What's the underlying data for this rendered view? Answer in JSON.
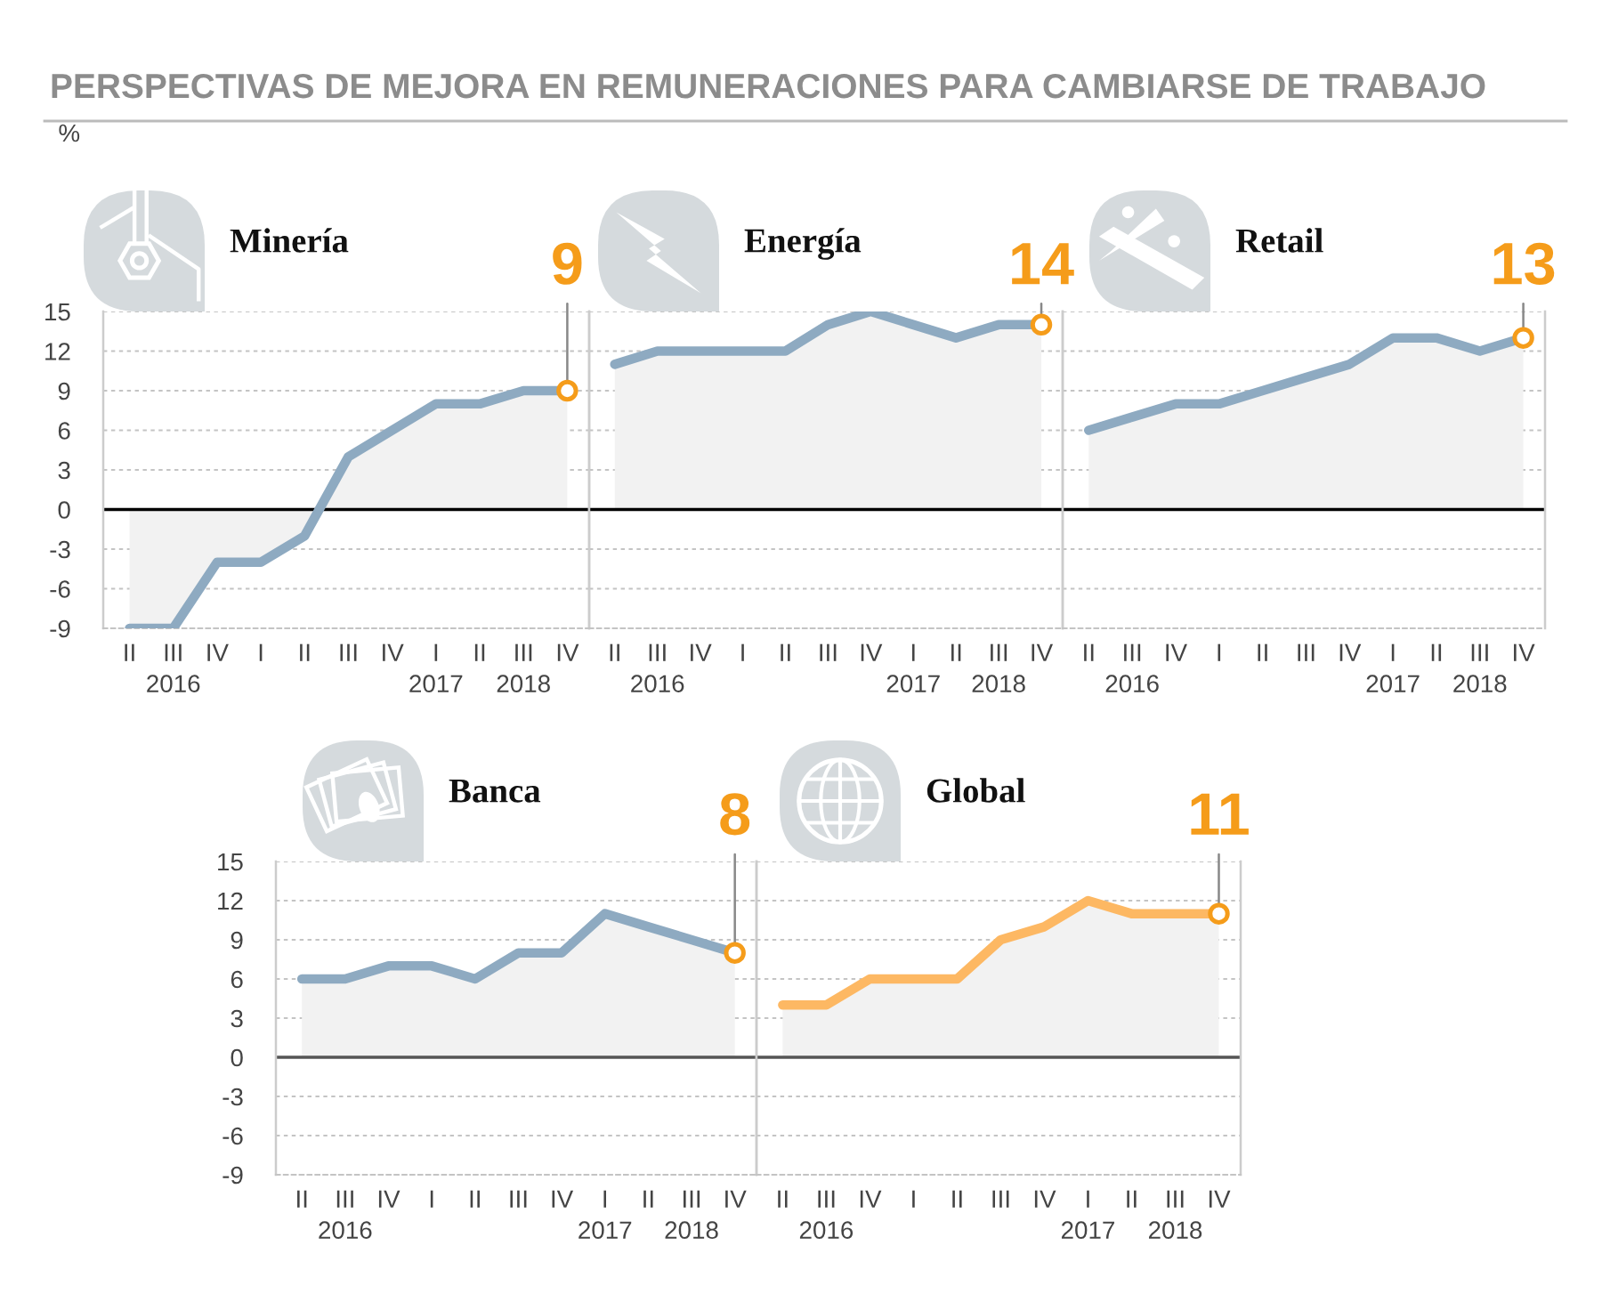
{
  "chart_data": [
    {
      "type": "area",
      "title": "PERSPECTIVAS DE MEJORA EN REMUNERACIONES PARA CAMBIARSE DE TRABAJO",
      "subtitle": "Minería",
      "ylabel": "%",
      "categories": [
        "II",
        "III\n2016",
        "IV",
        "I",
        "II",
        "III",
        "IV",
        "I\n2017",
        "II",
        "III\n2018",
        "IV"
      ],
      "series": [
        {
          "color": "#8eaac1",
          "values": [
            -9,
            -9,
            -4,
            -4,
            -2,
            4,
            6,
            8,
            8,
            9,
            9
          ],
          "value_labels": [
            null,
            null,
            null,
            null,
            null,
            null,
            null,
            null,
            null,
            null,
            "9"
          ]
        }
      ],
      "ylim": [
        -9,
        15
      ],
      "yticks": [
        -9,
        -6,
        -3,
        0,
        3,
        6,
        9,
        12,
        15
      ],
      "grid": "y",
      "ref_lines": [
        {
          "axis": "y",
          "value": 0,
          "color": "#000000"
        }
      ]
    },
    {
      "type": "area",
      "subtitle": "Energía",
      "categories": [
        "II",
        "III\n2016",
        "IV",
        "I",
        "II",
        "III",
        "IV",
        "I\n2017",
        "II",
        "III\n2018",
        "IV"
      ],
      "series": [
        {
          "color": "#8eaac1",
          "values": [
            11,
            12,
            12,
            12,
            12,
            14,
            15,
            14,
            13,
            14,
            14
          ],
          "value_labels": [
            null,
            null,
            null,
            null,
            null,
            null,
            null,
            null,
            null,
            null,
            "14"
          ]
        }
      ],
      "ylim": [
        -9,
        15
      ],
      "yticks": [
        -9,
        -6,
        -3,
        0,
        3,
        6,
        9,
        12,
        15
      ],
      "tick_labels": "x",
      "grid": "y",
      "ref_lines": [
        {
          "axis": "y",
          "value": 0,
          "color": "#000000"
        }
      ]
    },
    {
      "type": "area",
      "subtitle": "Retail",
      "categories": [
        "II",
        "III\n2016",
        "IV",
        "I",
        "II",
        "III",
        "IV",
        "I\n2017",
        "II",
        "III\n2018",
        "IV"
      ],
      "series": [
        {
          "color": "#8eaac1",
          "values": [
            6,
            7,
            8,
            8,
            9,
            10,
            11,
            13,
            13,
            12,
            13
          ],
          "value_labels": [
            null,
            null,
            null,
            null,
            null,
            null,
            null,
            null,
            null,
            null,
            "13"
          ]
        }
      ],
      "ylim": [
        -9,
        15
      ],
      "yticks": [
        -9,
        -6,
        -3,
        0,
        3,
        6,
        9,
        12,
        15
      ],
      "tick_labels": "x",
      "grid": "y",
      "ref_lines": [
        {
          "axis": "y",
          "value": 0,
          "color": "#000000"
        }
      ]
    },
    {
      "type": "area",
      "subtitle": "Banca",
      "categories": [
        "II",
        "III\n2016",
        "IV",
        "I",
        "II",
        "III",
        "IV",
        "I\n2017",
        "II",
        "III\n2018",
        "IV"
      ],
      "series": [
        {
          "color": "#8eaac1",
          "values": [
            6,
            6,
            7,
            7,
            6,
            8,
            8,
            11,
            10,
            9,
            8
          ],
          "value_labels": [
            null,
            null,
            null,
            null,
            null,
            null,
            null,
            null,
            null,
            null,
            "8"
          ]
        }
      ],
      "ylim": [
        -9,
        15
      ],
      "yticks": [
        -9,
        -6,
        -3,
        0,
        3,
        6,
        9,
        12,
        15
      ],
      "grid": "y",
      "ref_lines": [
        {
          "axis": "y",
          "value": 0,
          "color": "#555555"
        }
      ]
    },
    {
      "type": "area",
      "subtitle": "Global",
      "categories": [
        "II",
        "III\n2016",
        "IV",
        "I",
        "II",
        "III",
        "IV",
        "I\n2017",
        "II",
        "III\n2018",
        "IV"
      ],
      "series": [
        {
          "color": "#fdb863",
          "values": [
            4,
            4,
            6,
            6,
            6,
            9,
            10,
            12,
            11,
            11,
            11
          ],
          "value_labels": [
            null,
            null,
            null,
            null,
            null,
            null,
            null,
            null,
            null,
            null,
            "11"
          ]
        }
      ],
      "ylim": [
        -9,
        15
      ],
      "yticks": [
        -9,
        -6,
        -3,
        0,
        3,
        6,
        9,
        12,
        15
      ],
      "tick_labels": "x",
      "grid": "y",
      "ref_lines": [
        {
          "axis": "y",
          "value": 0,
          "color": "#555555"
        }
      ]
    }
  ]
}
